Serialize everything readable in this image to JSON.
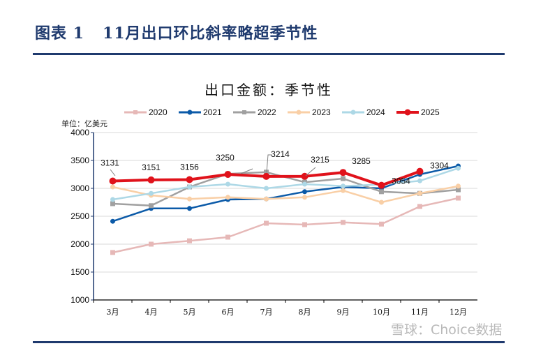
{
  "figure_title": "图表 1   11月出口环比斜率略超季节性",
  "watermark": "雪球：Choice数据",
  "chart_data": {
    "type": "line",
    "title": "出口金额：季节性",
    "unit_label": "单位：亿美元",
    "categories": [
      "3月",
      "4月",
      "5月",
      "6月",
      "7月",
      "8月",
      "9月",
      "10月",
      "11月",
      "12月"
    ],
    "ylim": [
      1000,
      4000
    ],
    "yticks": [
      1000,
      1500,
      2000,
      2500,
      3000,
      3500,
      4000
    ],
    "grid": true,
    "legend_position": "top",
    "series": [
      {
        "name": "2020",
        "color": "#e6b8b7",
        "marker": "square",
        "values": [
          1850,
          2000,
          2060,
          2125,
          2375,
          2350,
          2390,
          2360,
          2675,
          2825
        ]
      },
      {
        "name": "2021",
        "color": "#0b5aa8",
        "marker": "circle",
        "values": [
          2410,
          2640,
          2640,
          2800,
          2810,
          2940,
          3025,
          3000,
          3250,
          3400
        ]
      },
      {
        "name": "2022",
        "color": "#a0a0a0",
        "marker": "square",
        "values": [
          2725,
          2690,
          3025,
          3260,
          3290,
          3110,
          3175,
          2940,
          2910,
          2975
        ]
      },
      {
        "name": "2023",
        "color": "#f9cfa6",
        "marker": "circle",
        "values": [
          3025,
          2875,
          2810,
          2840,
          2810,
          2840,
          2960,
          2750,
          2910,
          3040
        ]
      },
      {
        "name": "2024",
        "color": "#add8e6",
        "marker": "circle",
        "values": [
          2800,
          2910,
          3025,
          3075,
          3000,
          3075,
          3040,
          3070,
          3135,
          3360
        ]
      },
      {
        "name": "2025",
        "color": "#e0121b",
        "marker": "circle",
        "values": [
          3131,
          3151,
          3156,
          3250,
          3214,
          3215,
          3285,
          3054,
          3304,
          null
        ],
        "data_labels": [
          "3131",
          "3151",
          "3156",
          "3250",
          "3214",
          "3215",
          "3285",
          "3054",
          "3304"
        ]
      }
    ]
  }
}
